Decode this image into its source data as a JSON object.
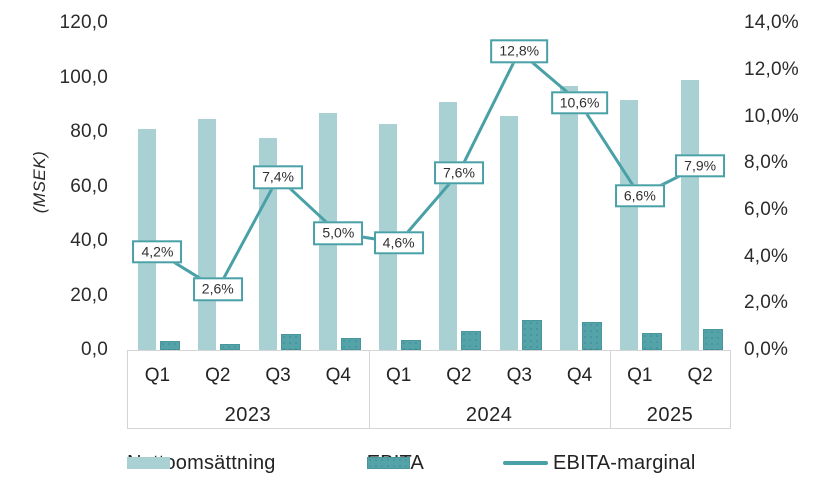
{
  "chart_data": {
    "type": "bar",
    "subtype": "combo-bar-line-dual-axis",
    "title": "",
    "left_axis_title": "(MSEK)",
    "categories_flat": [
      "Q1",
      "Q2",
      "Q3",
      "Q4",
      "Q1",
      "Q2",
      "Q3",
      "Q4",
      "Q1",
      "Q2"
    ],
    "category_groups": [
      {
        "year": "2023",
        "quarters": [
          "Q1",
          "Q2",
          "Q3",
          "Q4"
        ]
      },
      {
        "year": "2024",
        "quarters": [
          "Q1",
          "Q2",
          "Q3",
          "Q4"
        ]
      },
      {
        "year": "2025",
        "quarters": [
          "Q1",
          "Q2"
        ]
      }
    ],
    "series": [
      {
        "name": "Nettoomsättning",
        "type": "bar",
        "axis": "left",
        "color": "#a9d1d3",
        "values": [
          81,
          85,
          78,
          87,
          83,
          91,
          86,
          97,
          92,
          99
        ]
      },
      {
        "name": "EBITA",
        "type": "bar",
        "axis": "left",
        "color": "#54a3a8",
        "values": [
          3.4,
          2.2,
          5.8,
          4.4,
          3.8,
          6.9,
          10.9,
          10.3,
          6.1,
          7.8
        ]
      },
      {
        "name": "EBITA-marginal",
        "type": "line",
        "axis": "right",
        "color": "#49a0a6",
        "values": [
          4.2,
          2.6,
          7.4,
          5.0,
          4.6,
          7.6,
          12.8,
          10.6,
          6.6,
          7.9
        ],
        "point_labels": [
          "4,2%",
          "2,6%",
          "7,4%",
          "5,0%",
          "4,6%",
          "7,6%",
          "12,8%",
          "10,6%",
          "6,6%",
          "7,9%"
        ]
      }
    ],
    "left_axis": {
      "min": 0,
      "max": 120,
      "step": 20,
      "tick_labels": [
        "120,0",
        "100,0",
        "80,0",
        "60,0",
        "40,0",
        "20,0",
        "0,0"
      ]
    },
    "right_axis": {
      "min": 0,
      "max": 14,
      "step": 2,
      "tick_labels": [
        "14,0%",
        "12,0%",
        "10,0%",
        "8,0%",
        "6,0%",
        "4,0%",
        "2,0%",
        "0,0%"
      ]
    },
    "legend": [
      {
        "label": "Nettoomsättning",
        "swatch": "bar",
        "color": "#a9d1d3"
      },
      {
        "label": "EBITA",
        "swatch": "bar",
        "color": "#54a3a8"
      },
      {
        "label": "EBITA-marginal",
        "swatch": "line",
        "color": "#49a0a6"
      }
    ],
    "grid": false,
    "legend_position": "bottom"
  }
}
